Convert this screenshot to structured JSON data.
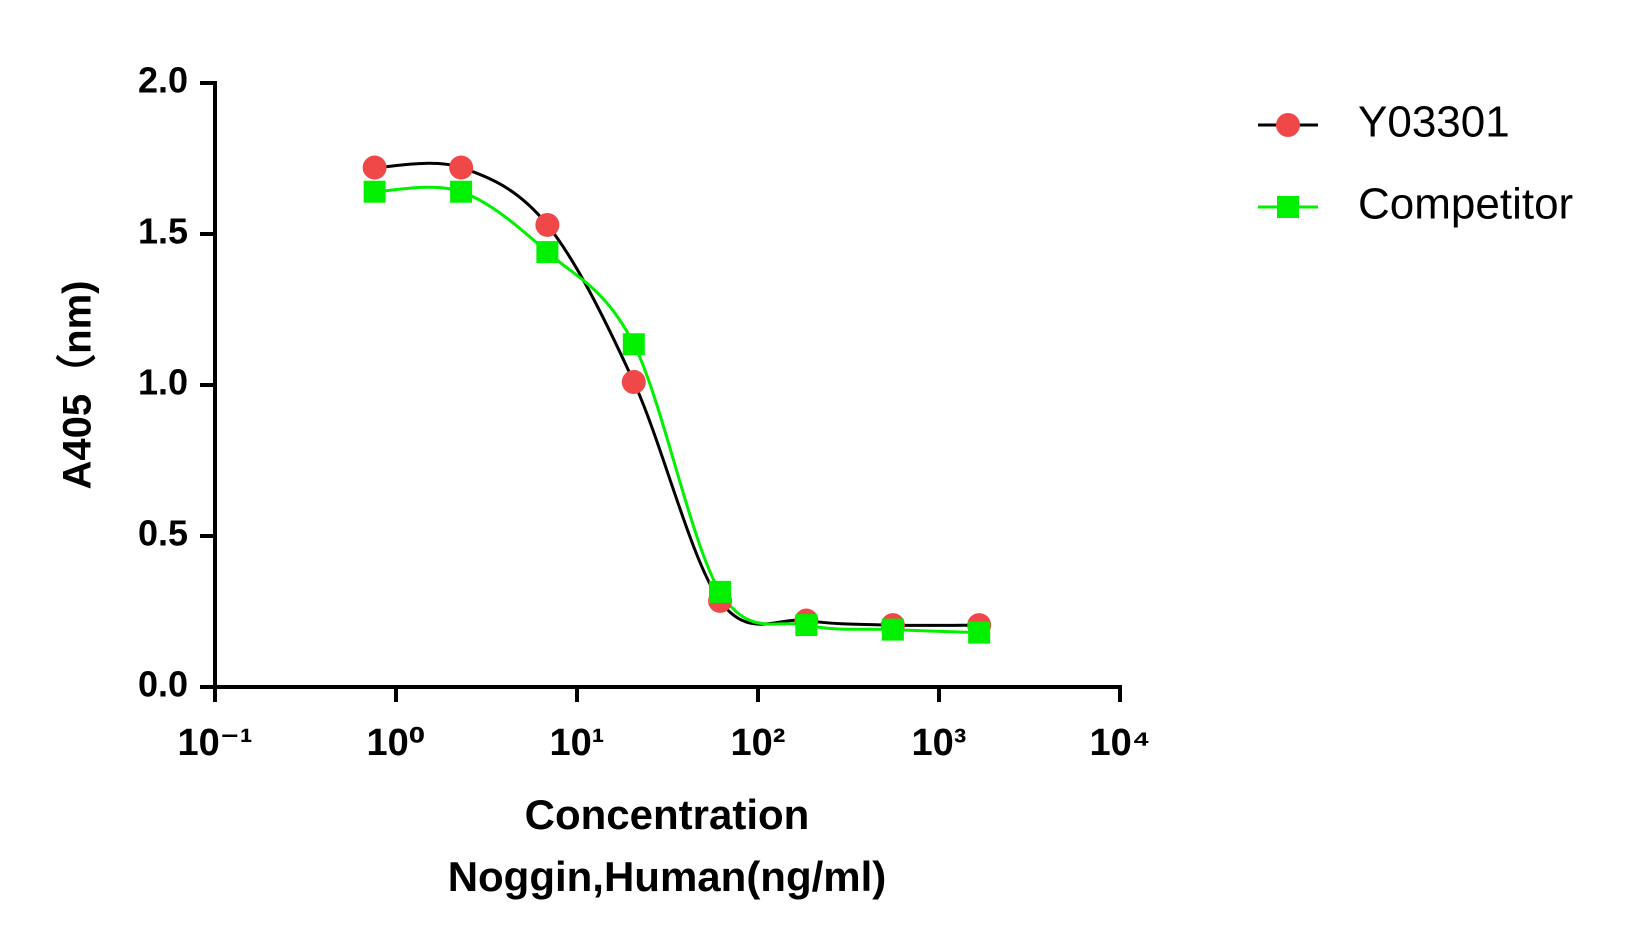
{
  "chart_data": {
    "type": "scatter",
    "ylabel": "A405（nm)",
    "xlabel": [
      "Concentration",
      "Noggin,Human(ng/ml)"
    ],
    "log_x": true,
    "xlim": [
      0.1,
      10000
    ],
    "xticks": [
      {
        "value": 0.1,
        "label": "10⁻¹"
      },
      {
        "value": 1,
        "label": "10⁰"
      },
      {
        "value": 10,
        "label": "10¹"
      },
      {
        "value": 100,
        "label": "10²"
      },
      {
        "value": 1000,
        "label": "10³"
      },
      {
        "value": 10000,
        "label": "10⁴"
      }
    ],
    "ylim": [
      0,
      2
    ],
    "yticks": [
      {
        "value": 0,
        "label": "0.0"
      },
      {
        "value": 0.5,
        "label": "0.5"
      },
      {
        "value": 1,
        "label": "1.0"
      },
      {
        "value": 1.5,
        "label": "1.5"
      },
      {
        "value": 2,
        "label": "2.0"
      }
    ],
    "legend": "top-right",
    "series": [
      {
        "name": "Y03301",
        "color": "#f04848",
        "line_color": "#000000",
        "marker": "circle",
        "x": [
          0.762,
          2.29,
          6.86,
          20.6,
          61.7,
          185,
          556,
          1667
        ],
        "values": [
          1.72,
          1.72,
          1.53,
          1.01,
          0.285,
          0.22,
          0.205,
          0.205
        ]
      },
      {
        "name": "Competitor",
        "color": "#00f000",
        "line_color": "#00f000",
        "marker": "square",
        "x": [
          0.762,
          2.29,
          6.86,
          20.6,
          61.7,
          185,
          556,
          1667
        ],
        "values": [
          1.64,
          1.64,
          1.44,
          1.135,
          0.315,
          0.205,
          0.19,
          0.18
        ]
      }
    ]
  }
}
